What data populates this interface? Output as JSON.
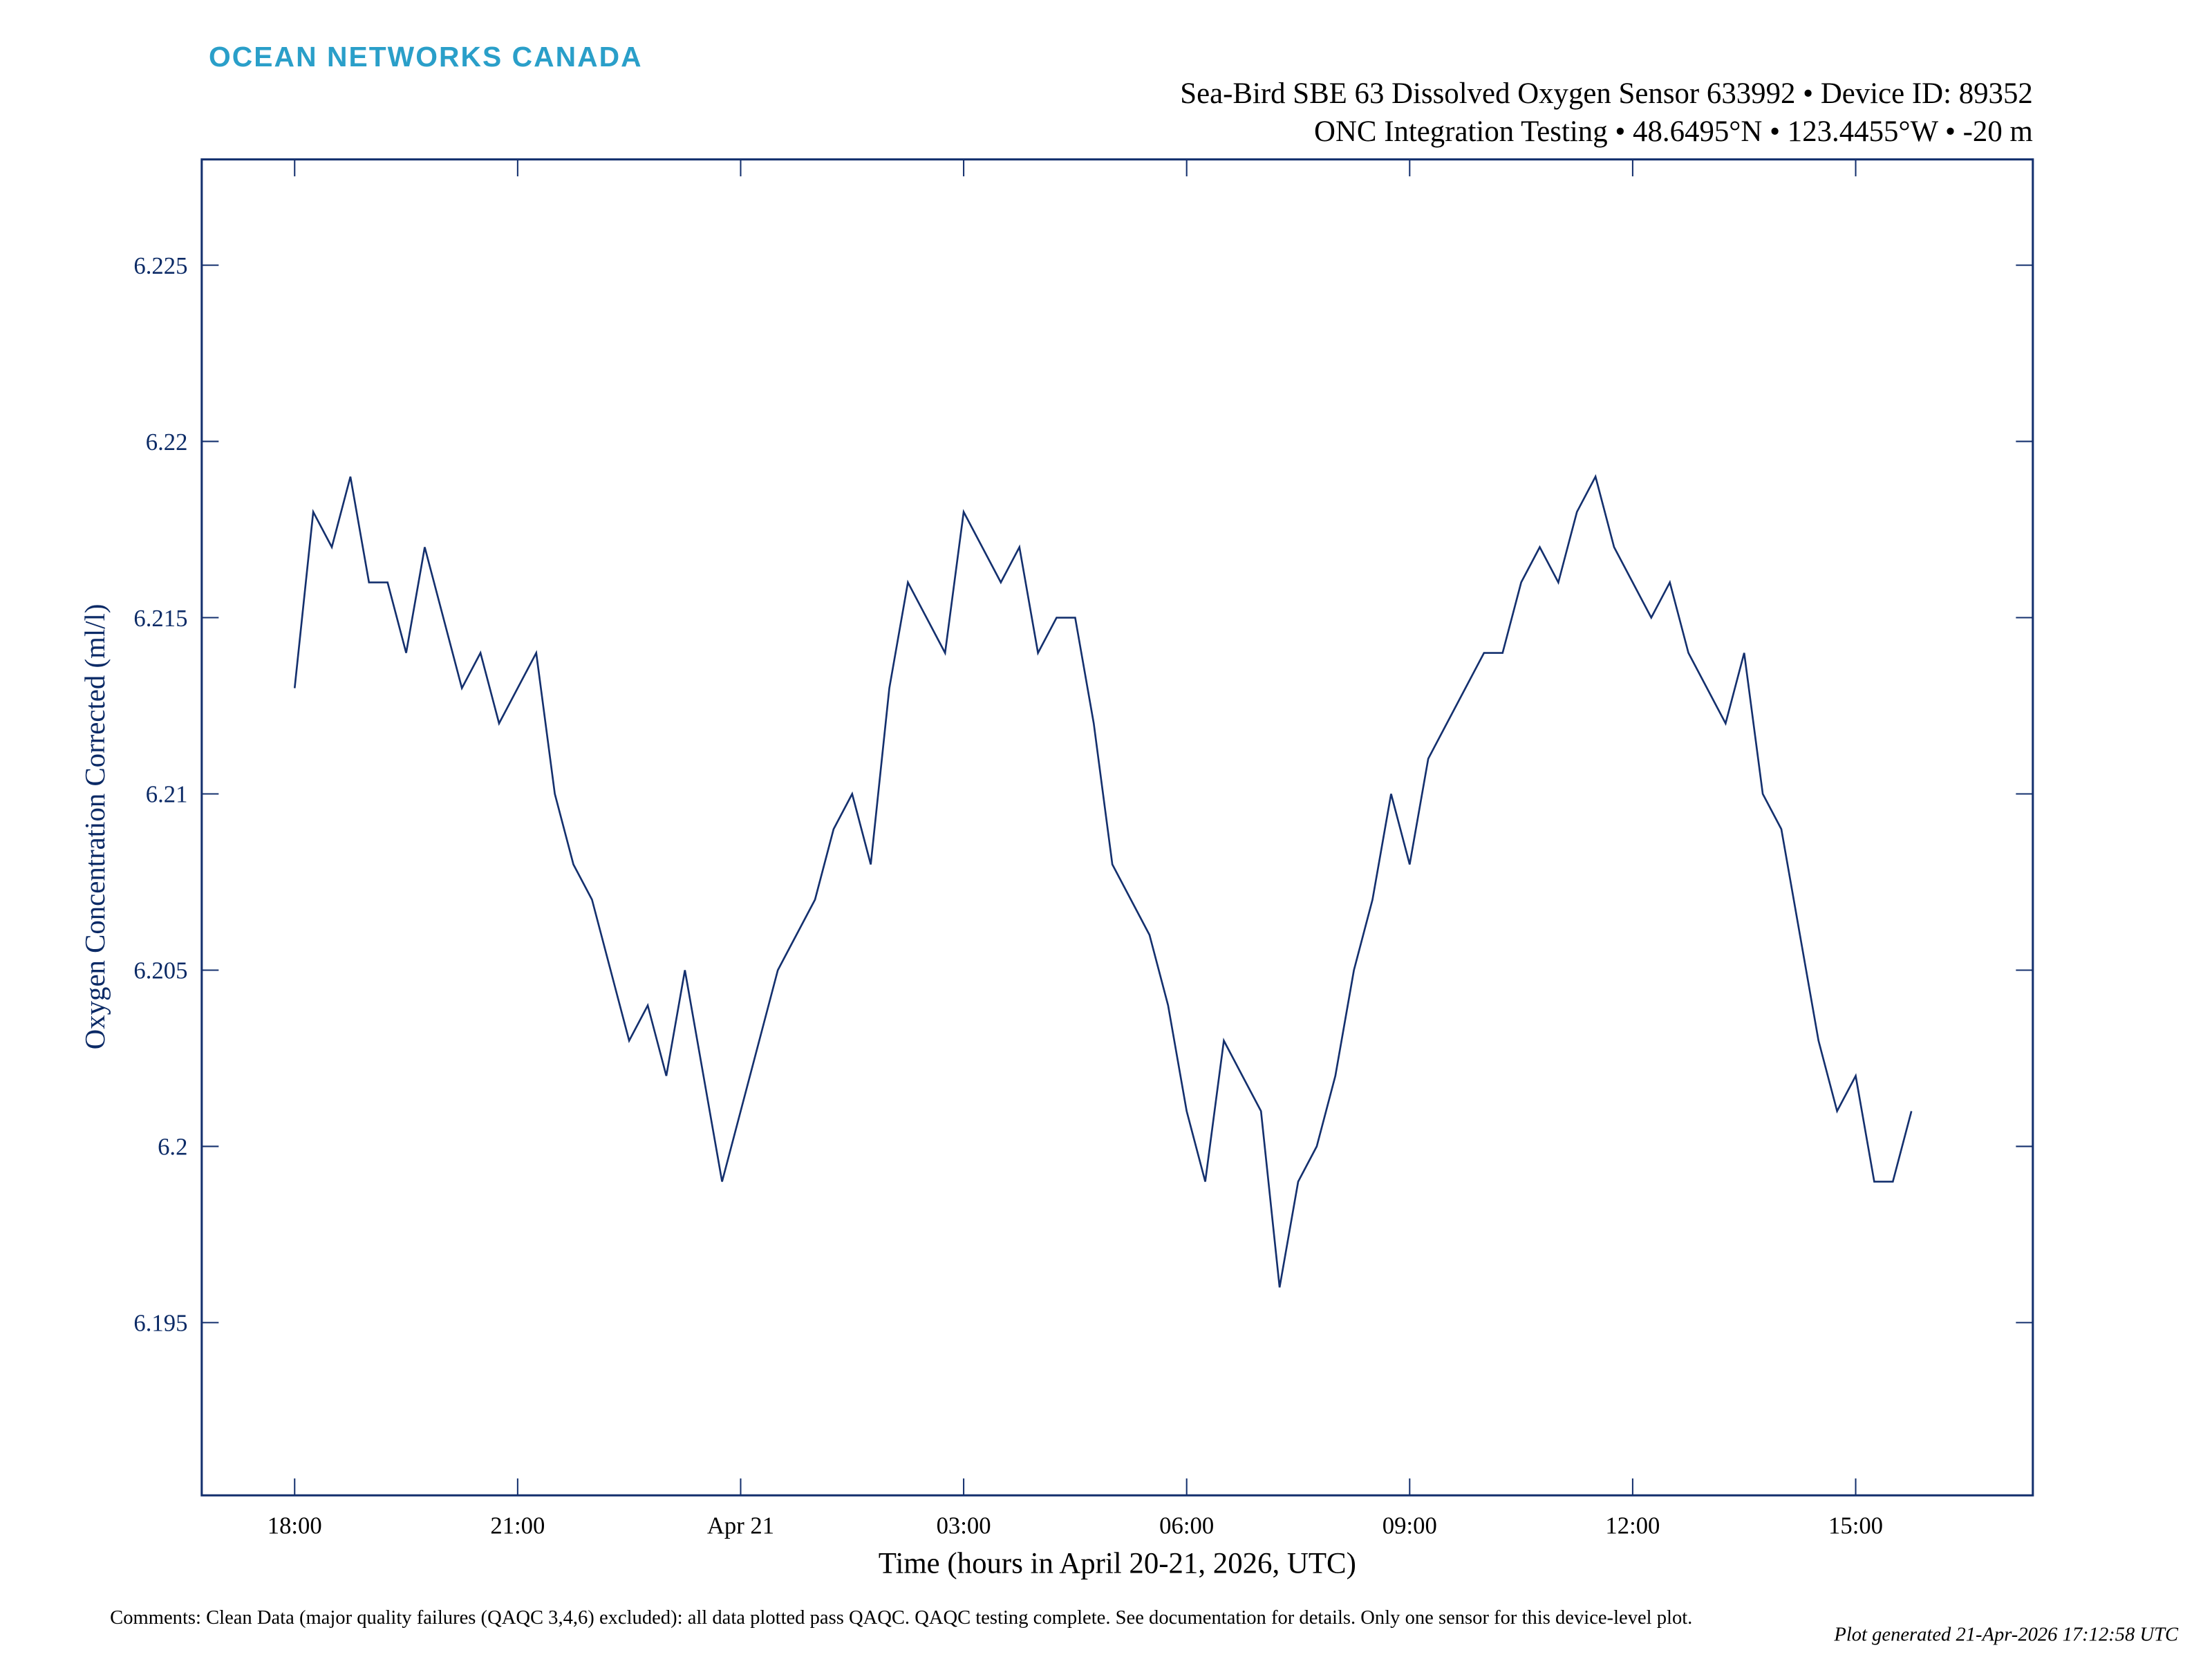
{
  "header": {
    "logo": "OCEAN NETWORKS CANADA"
  },
  "chart_data": {
    "type": "line",
    "title": "Sea-Bird SBE 63 Dissolved Oxygen Sensor 633992 • Device ID: 89352",
    "subtitle": "ONC Integration Testing • 48.6495°N • 123.4455°W • -20 m",
    "x_label": "Time (hours in April 20-21, 2026, UTC)",
    "y_label": "Oxygen Concentration Corrected (ml/l)",
    "xlim": [
      "2026-04-20T16:45",
      "2026-04-21T17:23"
    ],
    "xticks": [
      {
        "value": "2026-04-20T18:00",
        "label": "18:00"
      },
      {
        "value": "2026-04-20T21:00",
        "label": "21:00"
      },
      {
        "value": "2026-04-21T00:00",
        "label": "Apr 21"
      },
      {
        "value": "2026-04-21T03:00",
        "label": "03:00"
      },
      {
        "value": "2026-04-21T06:00",
        "label": "06:00"
      },
      {
        "value": "2026-04-21T09:00",
        "label": "09:00"
      },
      {
        "value": "2026-04-21T12:00",
        "label": "12:00"
      },
      {
        "value": "2026-04-21T15:00",
        "label": "15:00"
      }
    ],
    "ylim": [
      6.1901,
      6.228
    ],
    "yticks": [
      6.195,
      6.2,
      6.205,
      6.21,
      6.215,
      6.22,
      6.225
    ],
    "grid": false,
    "x": [
      "2026-04-20T18:00",
      "2026-04-20T18:15",
      "2026-04-20T18:30",
      "2026-04-20T18:45",
      "2026-04-20T19:00",
      "2026-04-20T19:15",
      "2026-04-20T19:30",
      "2026-04-20T19:45",
      "2026-04-20T20:00",
      "2026-04-20T20:15",
      "2026-04-20T20:30",
      "2026-04-20T20:45",
      "2026-04-20T21:00",
      "2026-04-20T21:15",
      "2026-04-20T21:30",
      "2026-04-20T21:45",
      "2026-04-20T22:00",
      "2026-04-20T22:15",
      "2026-04-20T22:30",
      "2026-04-20T22:45",
      "2026-04-20T23:00",
      "2026-04-20T23:15",
      "2026-04-20T23:30",
      "2026-04-20T23:45",
      "2026-04-21T00:00",
      "2026-04-21T00:15",
      "2026-04-21T00:30",
      "2026-04-21T00:45",
      "2026-04-21T01:00",
      "2026-04-21T01:15",
      "2026-04-21T01:30",
      "2026-04-21T01:45",
      "2026-04-21T02:00",
      "2026-04-21T02:15",
      "2026-04-21T02:30",
      "2026-04-21T02:45",
      "2026-04-21T03:00",
      "2026-04-21T03:15",
      "2026-04-21T03:30",
      "2026-04-21T03:45",
      "2026-04-21T04:00",
      "2026-04-21T04:15",
      "2026-04-21T04:30",
      "2026-04-21T04:45",
      "2026-04-21T05:00",
      "2026-04-21T05:15",
      "2026-04-21T05:30",
      "2026-04-21T05:45",
      "2026-04-21T06:00",
      "2026-04-21T06:15",
      "2026-04-21T06:30",
      "2026-04-21T06:45",
      "2026-04-21T07:00",
      "2026-04-21T07:15",
      "2026-04-21T07:30",
      "2026-04-21T07:45",
      "2026-04-21T08:00",
      "2026-04-21T08:15",
      "2026-04-21T08:30",
      "2026-04-21T08:45",
      "2026-04-21T09:00",
      "2026-04-21T09:15",
      "2026-04-21T09:30",
      "2026-04-21T09:45",
      "2026-04-21T10:00",
      "2026-04-21T10:15",
      "2026-04-21T10:30",
      "2026-04-21T10:45",
      "2026-04-21T11:00",
      "2026-04-21T11:15",
      "2026-04-21T11:30",
      "2026-04-21T11:45",
      "2026-04-21T12:00",
      "2026-04-21T12:15",
      "2026-04-21T12:30",
      "2026-04-21T12:45",
      "2026-04-21T13:00",
      "2026-04-21T13:15",
      "2026-04-21T13:30",
      "2026-04-21T13:45",
      "2026-04-21T14:00",
      "2026-04-21T14:15",
      "2026-04-21T14:30",
      "2026-04-21T14:45",
      "2026-04-21T15:00",
      "2026-04-21T15:15",
      "2026-04-21T15:30",
      "2026-04-21T15:45"
    ],
    "series": [
      {
        "name": "Oxygen Concentration Corrected",
        "color": "#14306e",
        "values": [
          6.213,
          6.218,
          6.217,
          6.219,
          6.216,
          6.216,
          6.214,
          6.217,
          6.215,
          6.213,
          6.214,
          6.212,
          6.213,
          6.214,
          6.21,
          6.208,
          6.207,
          6.205,
          6.203,
          6.204,
          6.202,
          6.205,
          6.202,
          6.199,
          6.201,
          6.203,
          6.205,
          6.206,
          6.207,
          6.209,
          6.21,
          6.208,
          6.213,
          6.216,
          6.215,
          6.214,
          6.218,
          6.217,
          6.216,
          6.217,
          6.214,
          6.215,
          6.215,
          6.212,
          6.208,
          6.207,
          6.206,
          6.204,
          6.201,
          6.199,
          6.203,
          6.202,
          6.201,
          6.196,
          6.199,
          6.2,
          6.202,
          6.205,
          6.207,
          6.21,
          6.208,
          6.211,
          6.212,
          6.213,
          6.214,
          6.214,
          6.216,
          6.217,
          6.216,
          6.218,
          6.219,
          6.217,
          6.216,
          6.215,
          6.216,
          6.214,
          6.213,
          6.212,
          6.214,
          6.21,
          6.209,
          6.206,
          6.203,
          6.201,
          6.202,
          6.199,
          6.199,
          6.201
        ]
      }
    ]
  },
  "footer": {
    "comments": "Comments: Clean Data (major quality failures (QAQC 3,4,6) excluded): all data plotted pass QAQC. QAQC testing complete. See documentation for details. Only one sensor for this device-level plot.",
    "generated": "Plot generated 21-Apr-2026 17:12:58 UTC"
  }
}
